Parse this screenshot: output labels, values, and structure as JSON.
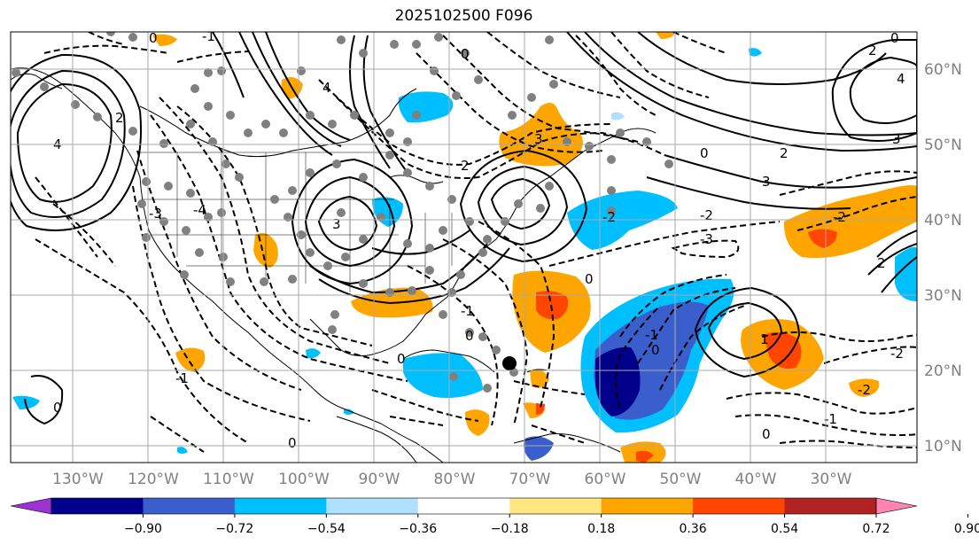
{
  "title": "2025102500 F096",
  "lon_labels": [
    "130°W",
    "120°W",
    "110°W",
    "100°W",
    "90°W",
    "80°W",
    "70°W",
    "60°W",
    "50°W",
    "40°W",
    "30°W"
  ],
  "lat_labels": [
    "60°N",
    "50°N",
    "40°N",
    "30°N",
    "20°N",
    "10°N"
  ],
  "colorbar": {
    "ticks": [
      "−0.90",
      "−0.72",
      "−0.54",
      "−0.36",
      "−0.18",
      "0.18",
      "0.36",
      "0.54",
      "0.72",
      "0.90"
    ],
    "colors": [
      "#9b33d1",
      "#00008b",
      "#3a5fcd",
      "#00bfff",
      "#b0e0ff",
      "#ffffff",
      "#ffe680",
      "#ffa500",
      "#ff4500",
      "#b22222",
      "#ff85b0"
    ]
  },
  "contour_labels": [
    "0",
    "-1",
    "-2",
    "-3",
    "-4",
    "1",
    "2",
    "3",
    "4"
  ],
  "grid_color": "#a9a9a9",
  "label_color": "#808080"
}
